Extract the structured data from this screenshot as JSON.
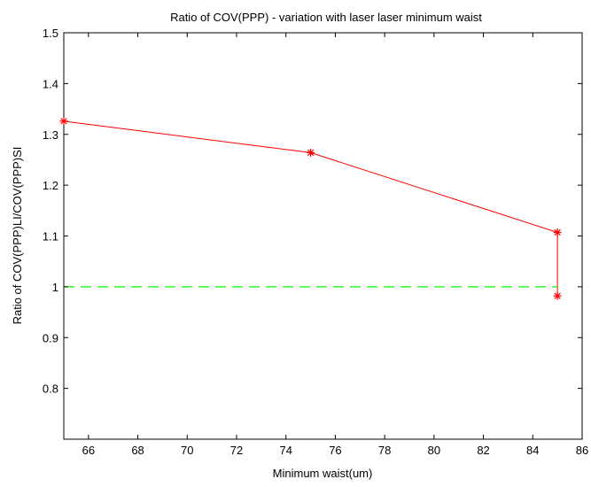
{
  "chart_data": {
    "type": "line",
    "title": "Ratio of COV(PPP) - variation with laser laser minimum waist",
    "xlabel": "Minimum waist(um)",
    "ylabel": "Ratio of COV(PPP)LI/COV(PPP)SI",
    "xlim": [
      65,
      86
    ],
    "ylim": [
      0.7,
      1.5
    ],
    "xticks": [
      66,
      68,
      70,
      72,
      74,
      76,
      78,
      80,
      82,
      84,
      86
    ],
    "yticks": [
      0.8,
      0.9,
      1,
      1.1,
      1.2,
      1.3,
      1.4,
      1.5
    ],
    "grid": false,
    "series": [
      {
        "x": [
          65,
          75,
          85,
          85
        ],
        "y": [
          1.326,
          1.264,
          1.107,
          0.982
        ],
        "color": "#ff0000",
        "line_style": "solid",
        "marker": "asterisk"
      },
      {
        "x": [
          65,
          85
        ],
        "y": [
          1.0,
          1.0
        ],
        "color": "#00ff00",
        "line_style": "dashed",
        "marker": "none"
      }
    ]
  }
}
